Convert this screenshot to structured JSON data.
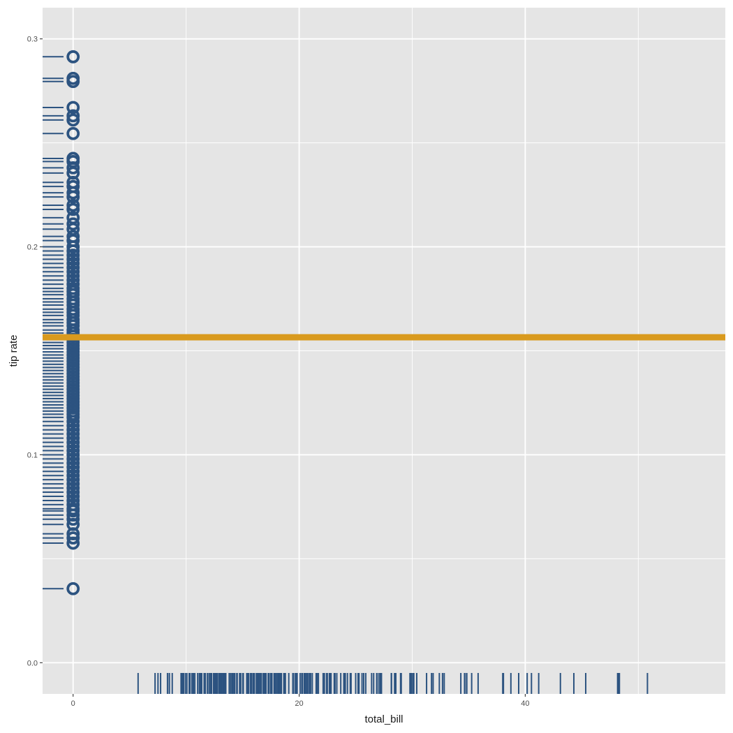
{
  "chart_data": {
    "type": "scatter",
    "title": "",
    "xlabel": "total_bill",
    "ylabel": "tip rate",
    "xlim": [
      -2.7,
      57.7
    ],
    "ylim": [
      -0.015,
      0.315
    ],
    "x_ticks": [
      0,
      20,
      40
    ],
    "x_tick_labels": [
      "0",
      "20",
      "40"
    ],
    "y_ticks": [
      0.0,
      0.1,
      0.2,
      0.3
    ],
    "y_tick_labels": [
      "0.0",
      "0.1",
      "0.2",
      "0.3"
    ],
    "grid": true,
    "legend": "none",
    "point_color": "#2c5380",
    "rug_color": "#2c5380",
    "hline_color": "#d99a1e",
    "panel_background": "#e5e5e5",
    "grid_color": "#ffffff",
    "hline": {
      "y": 0.1565
    },
    "points_x": 0,
    "points_y": [
      0.2914,
      0.281,
      0.2795,
      0.267,
      0.263,
      0.261,
      0.2545,
      0.2425,
      0.241,
      0.238,
      0.2355,
      0.231,
      0.229,
      0.226,
      0.224,
      0.22,
      0.218,
      0.214,
      0.211,
      0.2085,
      0.205,
      0.203,
      0.2,
      0.198,
      0.196,
      0.194,
      0.192,
      0.19,
      0.188,
      0.186,
      0.184,
      0.182,
      0.18,
      0.1785,
      0.177,
      0.175,
      0.1735,
      0.172,
      0.17,
      0.1685,
      0.167,
      0.165,
      0.1635,
      0.162,
      0.16,
      0.1585,
      0.157,
      0.1555,
      0.154,
      0.1525,
      0.151,
      0.1495,
      0.148,
      0.1465,
      0.145,
      0.1435,
      0.142,
      0.1405,
      0.139,
      0.1375,
      0.136,
      0.1345,
      0.133,
      0.1315,
      0.13,
      0.1285,
      0.127,
      0.1255,
      0.124,
      0.1225,
      0.121,
      0.1195,
      0.118,
      0.116,
      0.114,
      0.112,
      0.11,
      0.108,
      0.106,
      0.104,
      0.102,
      0.1,
      0.098,
      0.096,
      0.094,
      0.092,
      0.09,
      0.088,
      0.086,
      0.084,
      0.082,
      0.08,
      0.078,
      0.076,
      0.074,
      0.073,
      0.071,
      0.069,
      0.0665,
      0.062,
      0.06,
      0.0575,
      0.0356
    ],
    "rug_x": [
      5.75,
      7.25,
      7.51,
      7.74,
      8.35,
      8.51,
      8.52,
      8.77,
      9.55,
      9.6,
      9.68,
      9.78,
      9.94,
      10.07,
      10.27,
      10.29,
      10.33,
      10.34,
      10.51,
      10.63,
      10.65,
      10.77,
      11.02,
      11.17,
      11.24,
      11.35,
      11.38,
      11.59,
      11.61,
      11.69,
      11.87,
      12.02,
      12.03,
      12.16,
      12.26,
      12.43,
      12.46,
      12.54,
      12.6,
      12.66,
      12.74,
      12.76,
      12.9,
      13.0,
      13.03,
      13.13,
      13.16,
      13.27,
      13.28,
      13.37,
      13.39,
      13.42,
      13.51,
      13.81,
      13.94,
      14.07,
      14.15,
      14.26,
      14.31,
      14.48,
      14.52,
      14.73,
      14.78,
      14.83,
      15.01,
      15.04,
      15.06,
      15.36,
      15.38,
      15.42,
      15.48,
      15.53,
      15.69,
      15.77,
      15.81,
      15.95,
      15.98,
      16.04,
      16.21,
      16.27,
      16.29,
      16.31,
      16.4,
      16.45,
      16.47,
      16.58,
      16.66,
      16.82,
      16.93,
      16.97,
      16.99,
      17.07,
      17.26,
      17.29,
      17.31,
      17.46,
      17.47,
      17.51,
      17.59,
      17.78,
      17.81,
      17.82,
      17.89,
      17.92,
      18.04,
      18.15,
      18.24,
      18.26,
      18.28,
      18.29,
      18.35,
      18.43,
      18.64,
      18.69,
      18.71,
      18.78,
      19.08,
      19.44,
      19.49,
      19.65,
      19.77,
      19.81,
      19.82,
      20.08,
      20.23,
      20.27,
      20.29,
      20.45,
      20.49,
      20.53,
      20.65,
      20.69,
      20.76,
      20.9,
      20.92,
      21.01,
      21.16,
      21.5,
      21.58,
      21.7,
      22.12,
      22.23,
      22.42,
      22.49,
      22.67,
      22.75,
      22.76,
      22.82,
      23.1,
      23.17,
      23.33,
      23.68,
      23.95,
      24.01,
      24.06,
      24.08,
      24.27,
      24.52,
      24.55,
      24.59,
      25.0,
      25.21,
      25.28,
      25.29,
      25.56,
      25.71,
      25.89,
      26.41,
      26.59,
      26.86,
      26.88,
      27.05,
      27.18,
      27.2,
      27.28,
      28.15,
      28.17,
      28.44,
      28.55,
      28.97,
      29.03,
      29.8,
      29.85,
      29.93,
      30.06,
      30.14,
      30.4,
      31.27,
      31.71,
      31.85,
      32.4,
      32.68,
      32.83,
      34.3,
      34.63,
      34.65,
      34.81,
      34.83,
      35.26,
      35.83,
      38.01,
      38.07,
      38.73,
      39.42,
      40.17,
      40.55,
      41.19,
      43.11,
      44.3,
      45.35,
      48.17,
      48.27,
      48.33,
      50.81
    ]
  }
}
